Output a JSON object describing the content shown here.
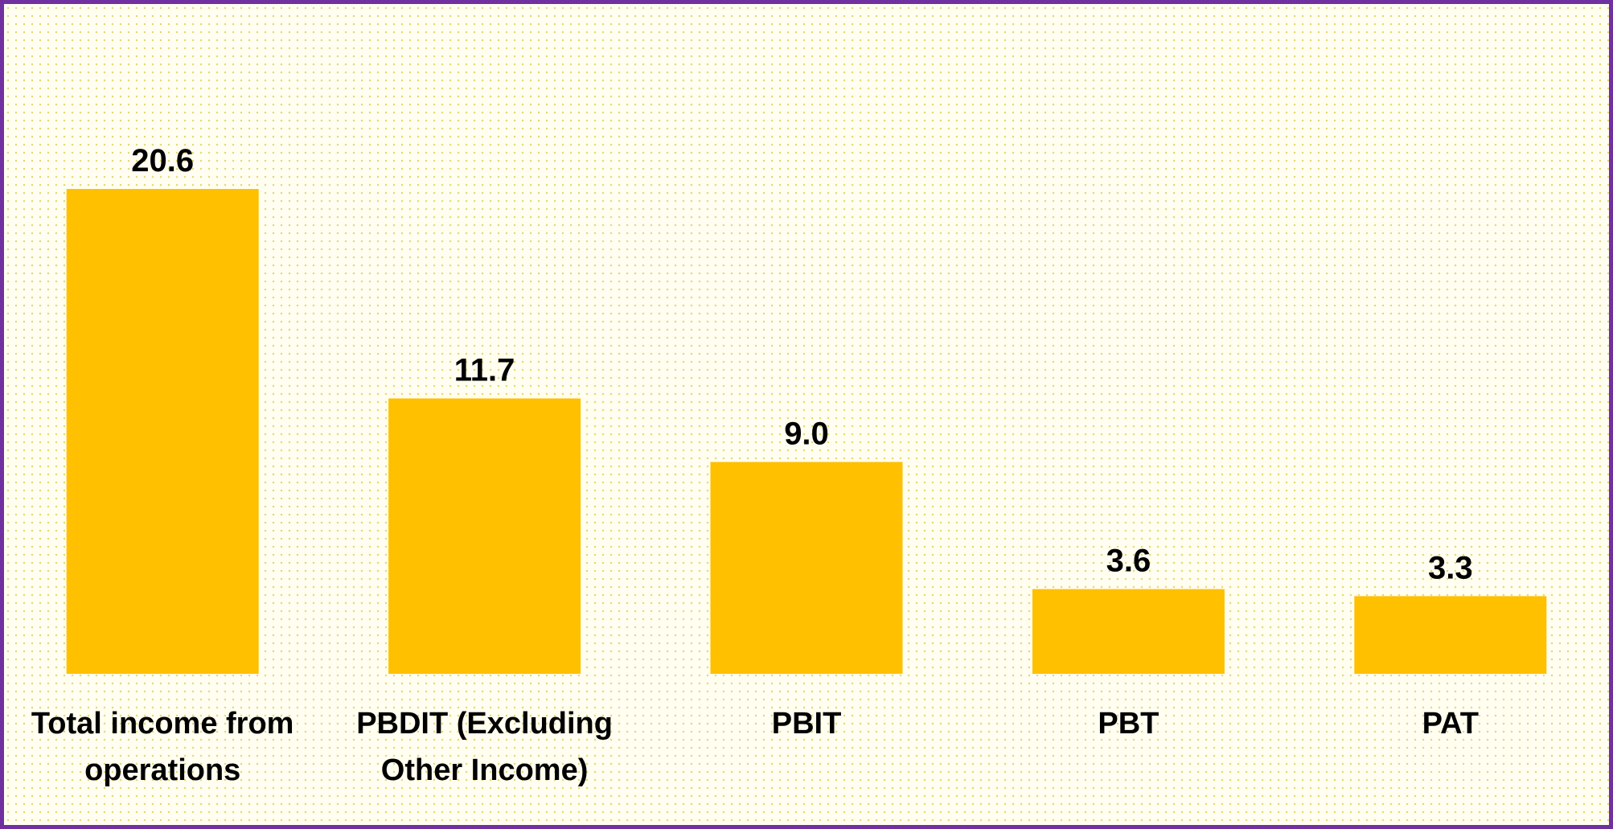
{
  "chart_data": {
    "type": "bar",
    "categories": [
      "Total income from operations",
      "PBDIT (Excluding Other Income)",
      "PBIT",
      "PBT",
      "PAT"
    ],
    "values": [
      20.6,
      11.7,
      9.0,
      3.6,
      3.3
    ],
    "value_labels": [
      "20.6",
      "11.7",
      "9.0",
      "3.6",
      "3.3"
    ],
    "color": "#ffc000"
  }
}
